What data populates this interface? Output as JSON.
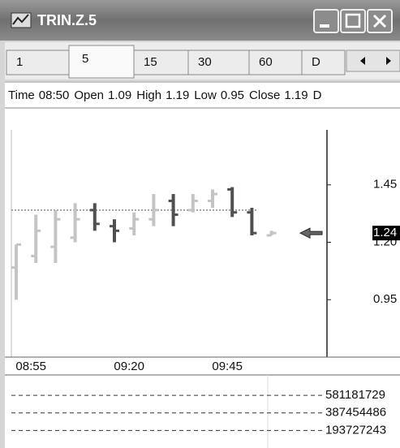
{
  "window": {
    "title": "TRIN.Z.5",
    "tabs": [
      "1",
      "5",
      "15",
      "30",
      "60",
      "D"
    ],
    "selected_tab": 1,
    "info": [
      {
        "label": "Time",
        "value": "08:50"
      },
      {
        "label": "Open",
        "value": "1.09"
      },
      {
        "label": "High",
        "value": "1.19"
      },
      {
        "label": "Low",
        "value": "0.95"
      },
      {
        "label": "Close",
        "value": "1.19"
      },
      {
        "label": "D",
        "value": ""
      }
    ]
  },
  "chart_data": [
    {
      "type": "ohlc",
      "categories": [
        null,
        "08:55",
        null,
        null,
        null,
        null,
        "09:20",
        null,
        null,
        null,
        null,
        "09:45",
        null,
        null
      ],
      "open": [
        1.09,
        1.14,
        1.18,
        1.22,
        1.34,
        1.27,
        1.26,
        1.3,
        1.38,
        1.34,
        1.38,
        1.43,
        1.33,
        1.23
      ],
      "high": [
        1.19,
        1.32,
        1.34,
        1.37,
        1.37,
        1.3,
        1.33,
        1.41,
        1.41,
        1.41,
        1.43,
        1.44,
        1.35,
        1.25
      ],
      "low": [
        0.95,
        1.11,
        1.11,
        1.2,
        1.25,
        1.2,
        1.23,
        1.27,
        1.27,
        1.33,
        1.35,
        1.31,
        1.23,
        1.23
      ],
      "close": [
        1.19,
        1.25,
        1.3,
        1.3,
        1.28,
        1.25,
        1.3,
        1.34,
        1.32,
        1.38,
        1.41,
        1.33,
        1.24,
        1.24
      ],
      "up_color": "#c4c4c4",
      "down_color": "#505050",
      "ylim": [
        0.7,
        1.76
      ],
      "yticks": [
        1.45,
        {
          "value": 1.2,
          "label": "1.20"
        },
        0.95
      ],
      "reference_line": 1.34
    },
    {
      "type": "line",
      "ylim": [
        0,
        806000000
      ],
      "yticks": [
        581181729,
        387454486,
        193727243
      ]
    }
  ]
}
